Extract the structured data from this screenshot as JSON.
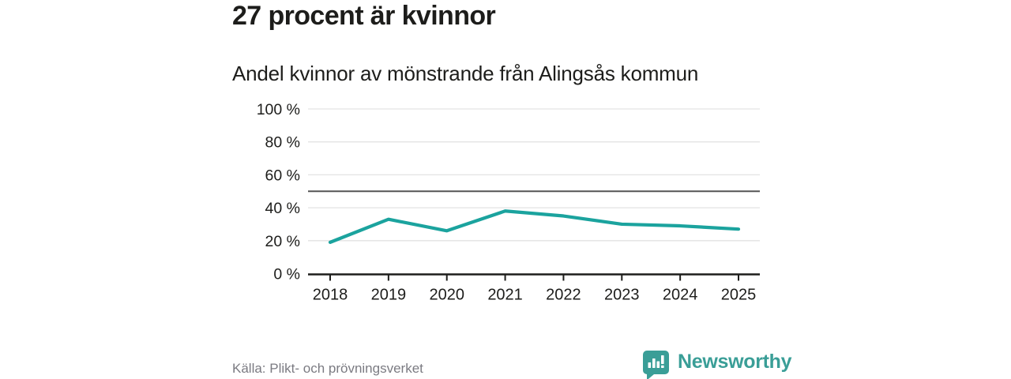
{
  "header": {
    "title": "27 procent är kvinnor",
    "subtitle": "Andel kvinnor av mönstrande från Alingsås kommun"
  },
  "chart_data": {
    "type": "line",
    "title": "Andel kvinnor av mönstrande från Alingsås kommun",
    "categories": [
      "2018",
      "2019",
      "2020",
      "2021",
      "2022",
      "2023",
      "2024",
      "2025"
    ],
    "series": [
      {
        "name": "Andel kvinnor",
        "values": [
          19,
          33,
          26,
          38,
          35,
          30,
          29,
          27
        ]
      }
    ],
    "unit": "%",
    "xlabel": "",
    "ylabel": "",
    "ylim": [
      0,
      100
    ],
    "yticks": [
      0,
      20,
      40,
      60,
      80,
      100
    ],
    "ytick_suffix": " %",
    "reference_line": 50,
    "grid": true,
    "legend": "none",
    "colors": {
      "line": "#1ba39e",
      "axis": "#1d1d1b",
      "grid": "#e3e3e3",
      "reference_line": "#555555",
      "tick_label": "#1d1d1b"
    }
  },
  "footer": {
    "source": "Källa: Plikt- och prövningsverket",
    "brand": "Newsworthy",
    "brand_color": "#3a9e97"
  }
}
